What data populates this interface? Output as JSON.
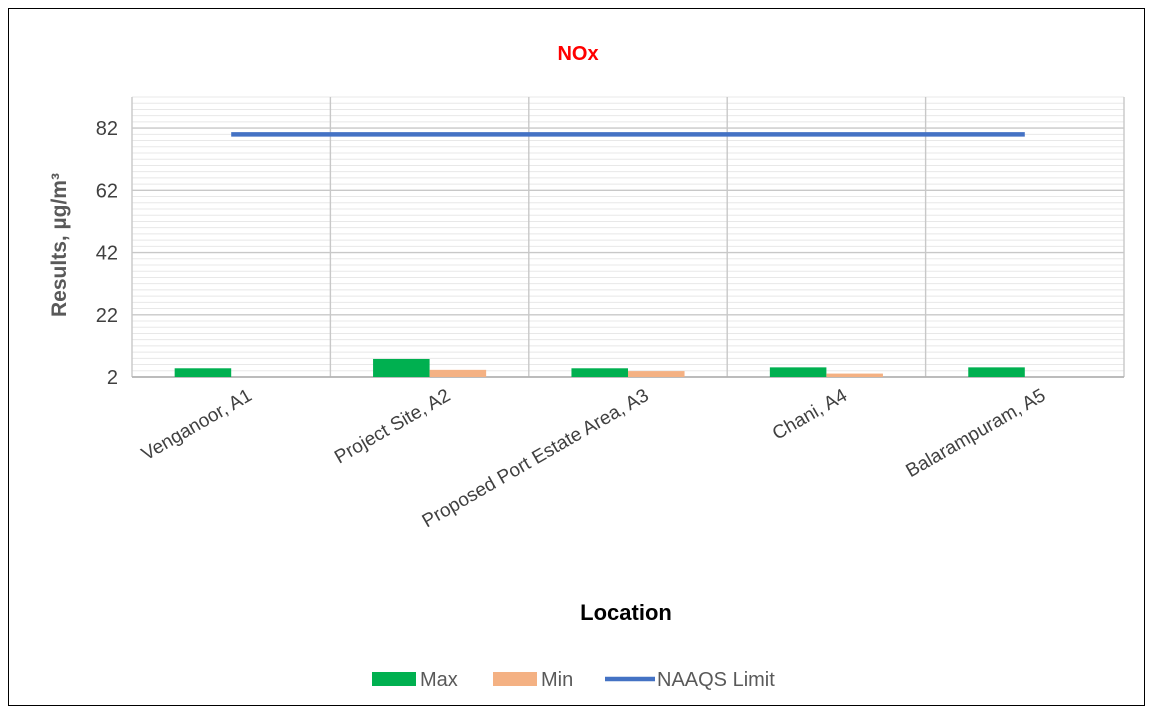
{
  "chart_data": {
    "type": "bar",
    "title": "NOx",
    "xlabel": "Location",
    "ylabel": "Results, µg/m³",
    "categories": [
      "Venganoor, A1",
      "Project Site, A2",
      "Proposed Port Estate Area, A3",
      "Chani, A4",
      "Balarampuram, A5"
    ],
    "series": [
      {
        "name": "Max",
        "type": "bar",
        "color": "#00b050",
        "values": [
          4.8,
          7.8,
          4.8,
          5.1,
          5.1
        ]
      },
      {
        "name": "Min",
        "type": "bar",
        "color": "#f4b183",
        "values": [
          null,
          4.3,
          3.9,
          3.1,
          null
        ]
      },
      {
        "name": "NAAQS Limit",
        "type": "line",
        "color": "#4472c4",
        "values": [
          80,
          80,
          80,
          80,
          80
        ]
      }
    ],
    "ylim": [
      2,
      92
    ],
    "yticks": [
      "2",
      "22",
      "42",
      "62",
      "82"
    ],
    "grid": true,
    "legend": "bottom"
  }
}
